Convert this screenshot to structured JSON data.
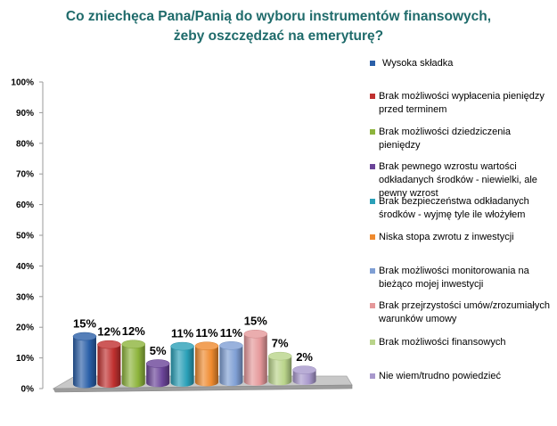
{
  "chart_data": {
    "type": "bar",
    "title": [
      "Co zniechęca Pana/Panią do wyboru instrumentów finansowych,",
      "żeby oszczędzać na emeryturę?"
    ],
    "xlabel": "",
    "ylabel": "",
    "ylim": [
      0,
      100
    ],
    "yticks": [
      "0%",
      "10%",
      "20%",
      "30%",
      "40%",
      "50%",
      "60%",
      "70%",
      "80%",
      "90%",
      "100%"
    ],
    "grid": false,
    "legend_position": "right",
    "categories": [
      "Wysoka składka",
      "Brak możliwości wypłacenia pieniędzy przed terminem",
      "Brak możliwości dziedziczenia pieniędzy",
      "Brak pewnego wzrostu wartości odkładanych środków - niewielki, ale pewny wzrost",
      "Brak bezpieczeństwa odkładanych środków - wyjmę tyle ile włożyłem",
      "Niska stopa zwrotu z inwestycji",
      "Brak możliwości monitorowania na bieżąco mojej inwestycji",
      "Brak przejrzystości umów/zrozumiałych warunków umowy",
      "Brak możliwości finansowych",
      "Nie wiem/trudno powiedzieć"
    ],
    "values": [
      15,
      12,
      12,
      5,
      11,
      11,
      11,
      15,
      7,
      2
    ],
    "value_labels": [
      "15%",
      "12%",
      "12%",
      "5%",
      "11%",
      "11%",
      "11%",
      "15%",
      "7%",
      "2%"
    ],
    "colors": [
      "#2a5fa8",
      "#c0302f",
      "#8db43c",
      "#6a4498",
      "#2aa0b8",
      "#ef8a2e",
      "#7f9fd4",
      "#e5989a",
      "#b9d48a",
      "#a898cc"
    ],
    "title_color": "#1f6b6b"
  }
}
